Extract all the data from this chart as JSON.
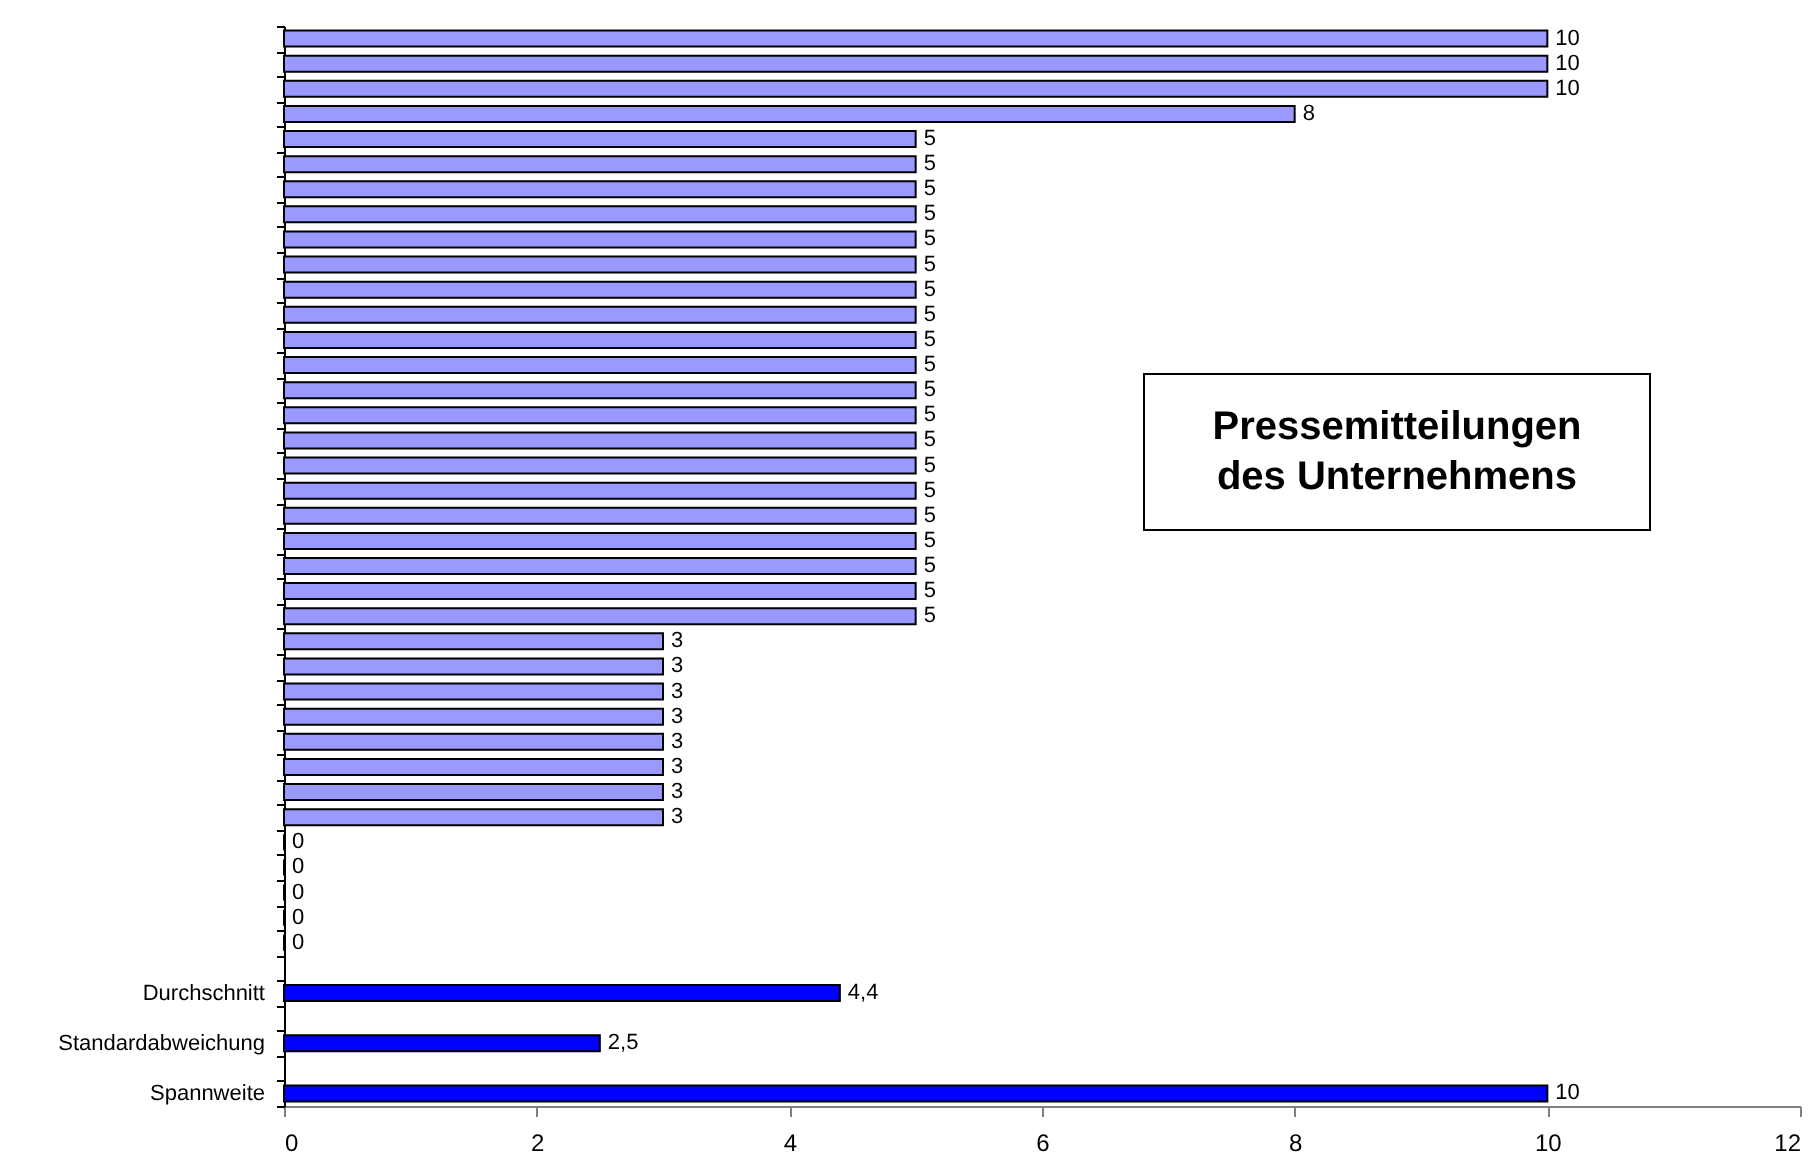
{
  "chart_data": {
    "type": "bar",
    "orientation": "horizontal",
    "title": "Pressemitteilungen des Unternehmens",
    "categories": [
      null,
      null,
      null,
      null,
      null,
      null,
      null,
      null,
      null,
      null,
      null,
      null,
      null,
      null,
      null,
      null,
      null,
      null,
      null,
      null,
      null,
      null,
      null,
      null,
      null,
      null,
      null,
      null,
      null,
      null,
      null,
      null,
      null,
      null,
      null,
      null,
      null,
      null,
      "Durchschnitt",
      null,
      "Standardabweichung",
      null,
      "Spannweite"
    ],
    "values": [
      10,
      10,
      10,
      8,
      5,
      5,
      5,
      5,
      5,
      5,
      5,
      5,
      5,
      5,
      5,
      5,
      5,
      5,
      5,
      5,
      5,
      5,
      5,
      5,
      3,
      3,
      3,
      3,
      3,
      3,
      3,
      3,
      0,
      0,
      0,
      0,
      0,
      null,
      4.4,
      null,
      2.5,
      null,
      10
    ],
    "colors": [
      "#9999ff",
      "#9999ff",
      "#9999ff",
      "#9999ff",
      "#9999ff",
      "#9999ff",
      "#9999ff",
      "#9999ff",
      "#9999ff",
      "#9999ff",
      "#9999ff",
      "#9999ff",
      "#9999ff",
      "#9999ff",
      "#9999ff",
      "#9999ff",
      "#9999ff",
      "#9999ff",
      "#9999ff",
      "#9999ff",
      "#9999ff",
      "#9999ff",
      "#9999ff",
      "#9999ff",
      "#9999ff",
      "#9999ff",
      "#9999ff",
      "#9999ff",
      "#9999ff",
      "#9999ff",
      "#9999ff",
      "#9999ff",
      "#9999ff",
      "#9999ff",
      "#9999ff",
      "#9999ff",
      "#9999ff",
      null,
      "#0000ff",
      null,
      "#0000ff",
      null,
      "#0000ff"
    ],
    "value_labels": [
      "10",
      "10",
      "10",
      "8",
      "5",
      "5",
      "5",
      "5",
      "5",
      "5",
      "5",
      "5",
      "5",
      "5",
      "5",
      "5",
      "5",
      "5",
      "5",
      "5",
      "5",
      "5",
      "5",
      "5",
      "3",
      "3",
      "3",
      "3",
      "3",
      "3",
      "3",
      "3",
      "0",
      "0",
      "0",
      "0",
      "0",
      null,
      "4,4",
      null,
      "2,5",
      null,
      "10"
    ],
    "xlim": [
      0,
      12
    ],
    "xticks": [
      0,
      2,
      4,
      6,
      8,
      10,
      12
    ]
  }
}
